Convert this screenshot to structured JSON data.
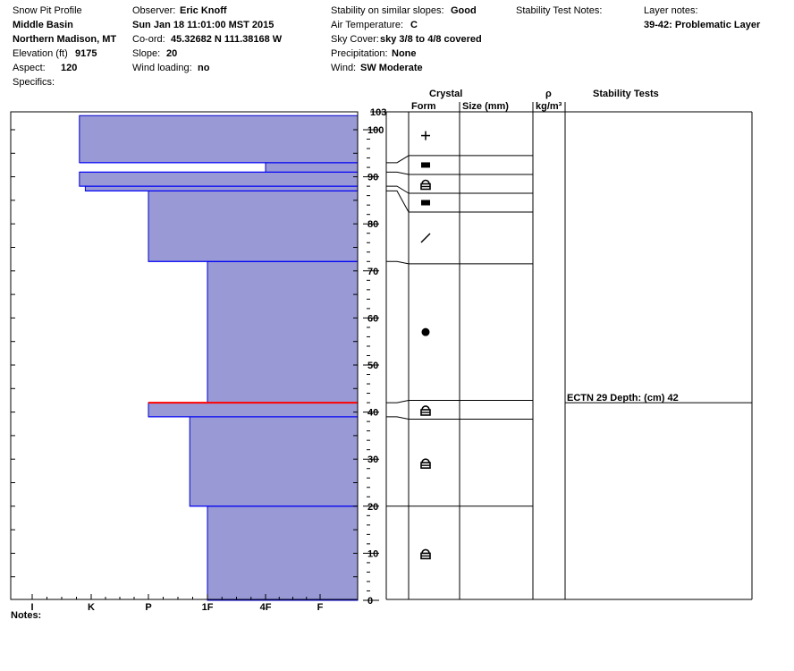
{
  "header": {
    "title": "Snow Pit Profile",
    "location": "Middle Basin",
    "region": "Northern Madison, MT",
    "elevation_label": "Elevation (ft)",
    "elevation_value": "9175",
    "aspect_label": "Aspect:",
    "aspect_value": "120",
    "specifics_label": "Specifics:",
    "observer_label": "Observer:",
    "observer_value": "Eric Knoff",
    "datetime": "Sun Jan 18 11:01:00 MST 2015",
    "coord_label": "Co-ord:",
    "coord_value": "45.32682 N 111.38168 W",
    "slope_label": "Slope:",
    "slope_value": "20",
    "wind_loading_label": "Wind loading:",
    "wind_loading_value": "no",
    "stability_label": "Stability on similar slopes:",
    "stability_value": "Good",
    "air_temp_label": "Air Temperature:",
    "air_temp_value": "C",
    "sky_label": "Sky Cover:",
    "sky_value": "sky 3/8 to 4/8 covered",
    "precip_label": "Precipitation:",
    "precip_value": "None",
    "wind_label": "Wind:",
    "wind_value": "SW Moderate",
    "stability_notes_label": "Stability Test Notes:",
    "layer_notes_label": "Layer notes:",
    "layer_notes_value": "39-42: Problematic Layer"
  },
  "columns": {
    "crystal": "Crystal",
    "form": "Form",
    "size": "Size (mm)",
    "rho": "ρ",
    "rho_unit": "kg/m³",
    "stability_tests": "Stability Tests"
  },
  "notes_label": "Notes:",
  "stability_test": {
    "label": "ECTN 29  Depth: (cm) 42",
    "depth": 42
  },
  "colors": {
    "fill": "#9999d6",
    "layer_line": "#0000ff",
    "problem_line": "#ff0000"
  },
  "chart_data": {
    "type": "bar",
    "orientation": "horizontal",
    "ylim": [
      0,
      103
    ],
    "y_ticks": [
      0,
      10,
      20,
      30,
      40,
      50,
      60,
      70,
      80,
      90,
      100
    ],
    "y_top_label": "103",
    "hardness_categories": [
      "I",
      "K",
      "P",
      "1F",
      "4F",
      "F"
    ],
    "hardness_layers": [
      {
        "bottom": 0,
        "top": 20,
        "hardness": 3.0
      },
      {
        "bottom": 20,
        "top": 39,
        "hardness": 2.7
      },
      {
        "bottom": 39,
        "top": 42,
        "hardness": 2.0
      },
      {
        "bottom": 42,
        "top": 72,
        "hardness": 3.0
      },
      {
        "bottom": 72,
        "top": 87,
        "hardness": 2.0
      },
      {
        "bottom": 87,
        "top": 88,
        "hardness": 0.9
      },
      {
        "bottom": 88,
        "top": 91,
        "hardness": 0.8
      },
      {
        "bottom": 91,
        "top": 93,
        "hardness": 4.0
      },
      {
        "bottom": 93,
        "top": 103,
        "hardness": 0.8
      }
    ],
    "problem_layer_depth": 42,
    "grain_layers": [
      {
        "bottom": 0,
        "top": 20,
        "form": "faceted"
      },
      {
        "bottom": 20,
        "top": 38.5,
        "form": "faceted"
      },
      {
        "bottom": 38.5,
        "top": 42.5,
        "form": "faceted"
      },
      {
        "bottom": 42.5,
        "top": 71.5,
        "form": "rounds"
      },
      {
        "bottom": 71.5,
        "top": 82.5,
        "form": "decomposing"
      },
      {
        "bottom": 82.5,
        "top": 86.5,
        "form": "surface-hoar"
      },
      {
        "bottom": 86.5,
        "top": 90.5,
        "form": "faceted"
      },
      {
        "bottom": 90.5,
        "top": 94.5,
        "form": "surface-hoar"
      },
      {
        "bottom": 94.5,
        "top": 103,
        "form": "new-snow"
      }
    ]
  }
}
